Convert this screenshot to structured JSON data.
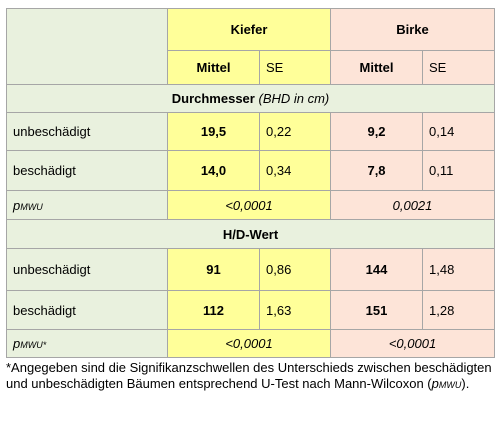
{
  "header": {
    "groups": [
      "Kiefer",
      "Birke"
    ],
    "columns": [
      "Mittel",
      "SE",
      "Mittel",
      "SE"
    ]
  },
  "sections": [
    {
      "title": "Durchmesser",
      "unit": "(BHD in cm)",
      "rows": [
        {
          "label": "unbeschädigt",
          "values": [
            "19,5",
            "0,22",
            "9,2",
            "0,14"
          ]
        },
        {
          "label": "beschädigt",
          "values": [
            "14,0",
            "0,34",
            "7,8",
            "0,11"
          ]
        }
      ],
      "p": {
        "symbol": "p",
        "subscript": "MWU",
        "values": [
          "<0,0001",
          "0,0021"
        ]
      }
    },
    {
      "title": "H/D-Wert",
      "rows": [
        {
          "label": "unbeschädigt",
          "values": [
            "91",
            "0,86",
            "144",
            "1,48"
          ]
        },
        {
          "label": "beschädigt",
          "values": [
            "112",
            "1,63",
            "151",
            "1,28"
          ]
        }
      ],
      "p": {
        "symbol": "p",
        "subscript": "MWU*",
        "values": [
          "<0,0001",
          "<0,0001"
        ]
      }
    }
  ],
  "footnote": {
    "text": "*Angegeben sind die Signifikanzschwellen des Unterschieds zwischen beschädigten und unbeschädigten Bäumen entsprechend U-Test nach Mann-Wilcoxon (",
    "symbol": "p",
    "subscript": "MWU",
    "end": ")."
  }
}
